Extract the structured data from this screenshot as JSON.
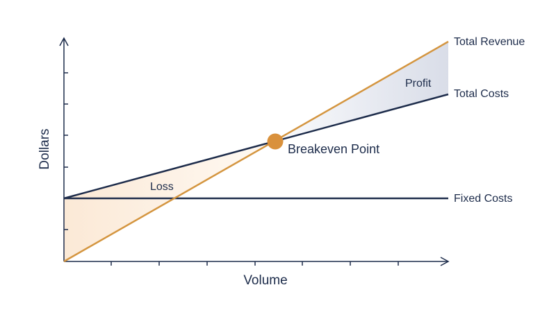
{
  "labels": {
    "total_revenue": "Total Revenue",
    "total_costs": "Total Costs",
    "fixed_costs": "Fixed Costs",
    "profit": "Profit",
    "loss": "Loss",
    "breakeven": "Breakeven Point"
  },
  "axes": {
    "y_label": "Dollars",
    "x_label": "Volume"
  }
}
